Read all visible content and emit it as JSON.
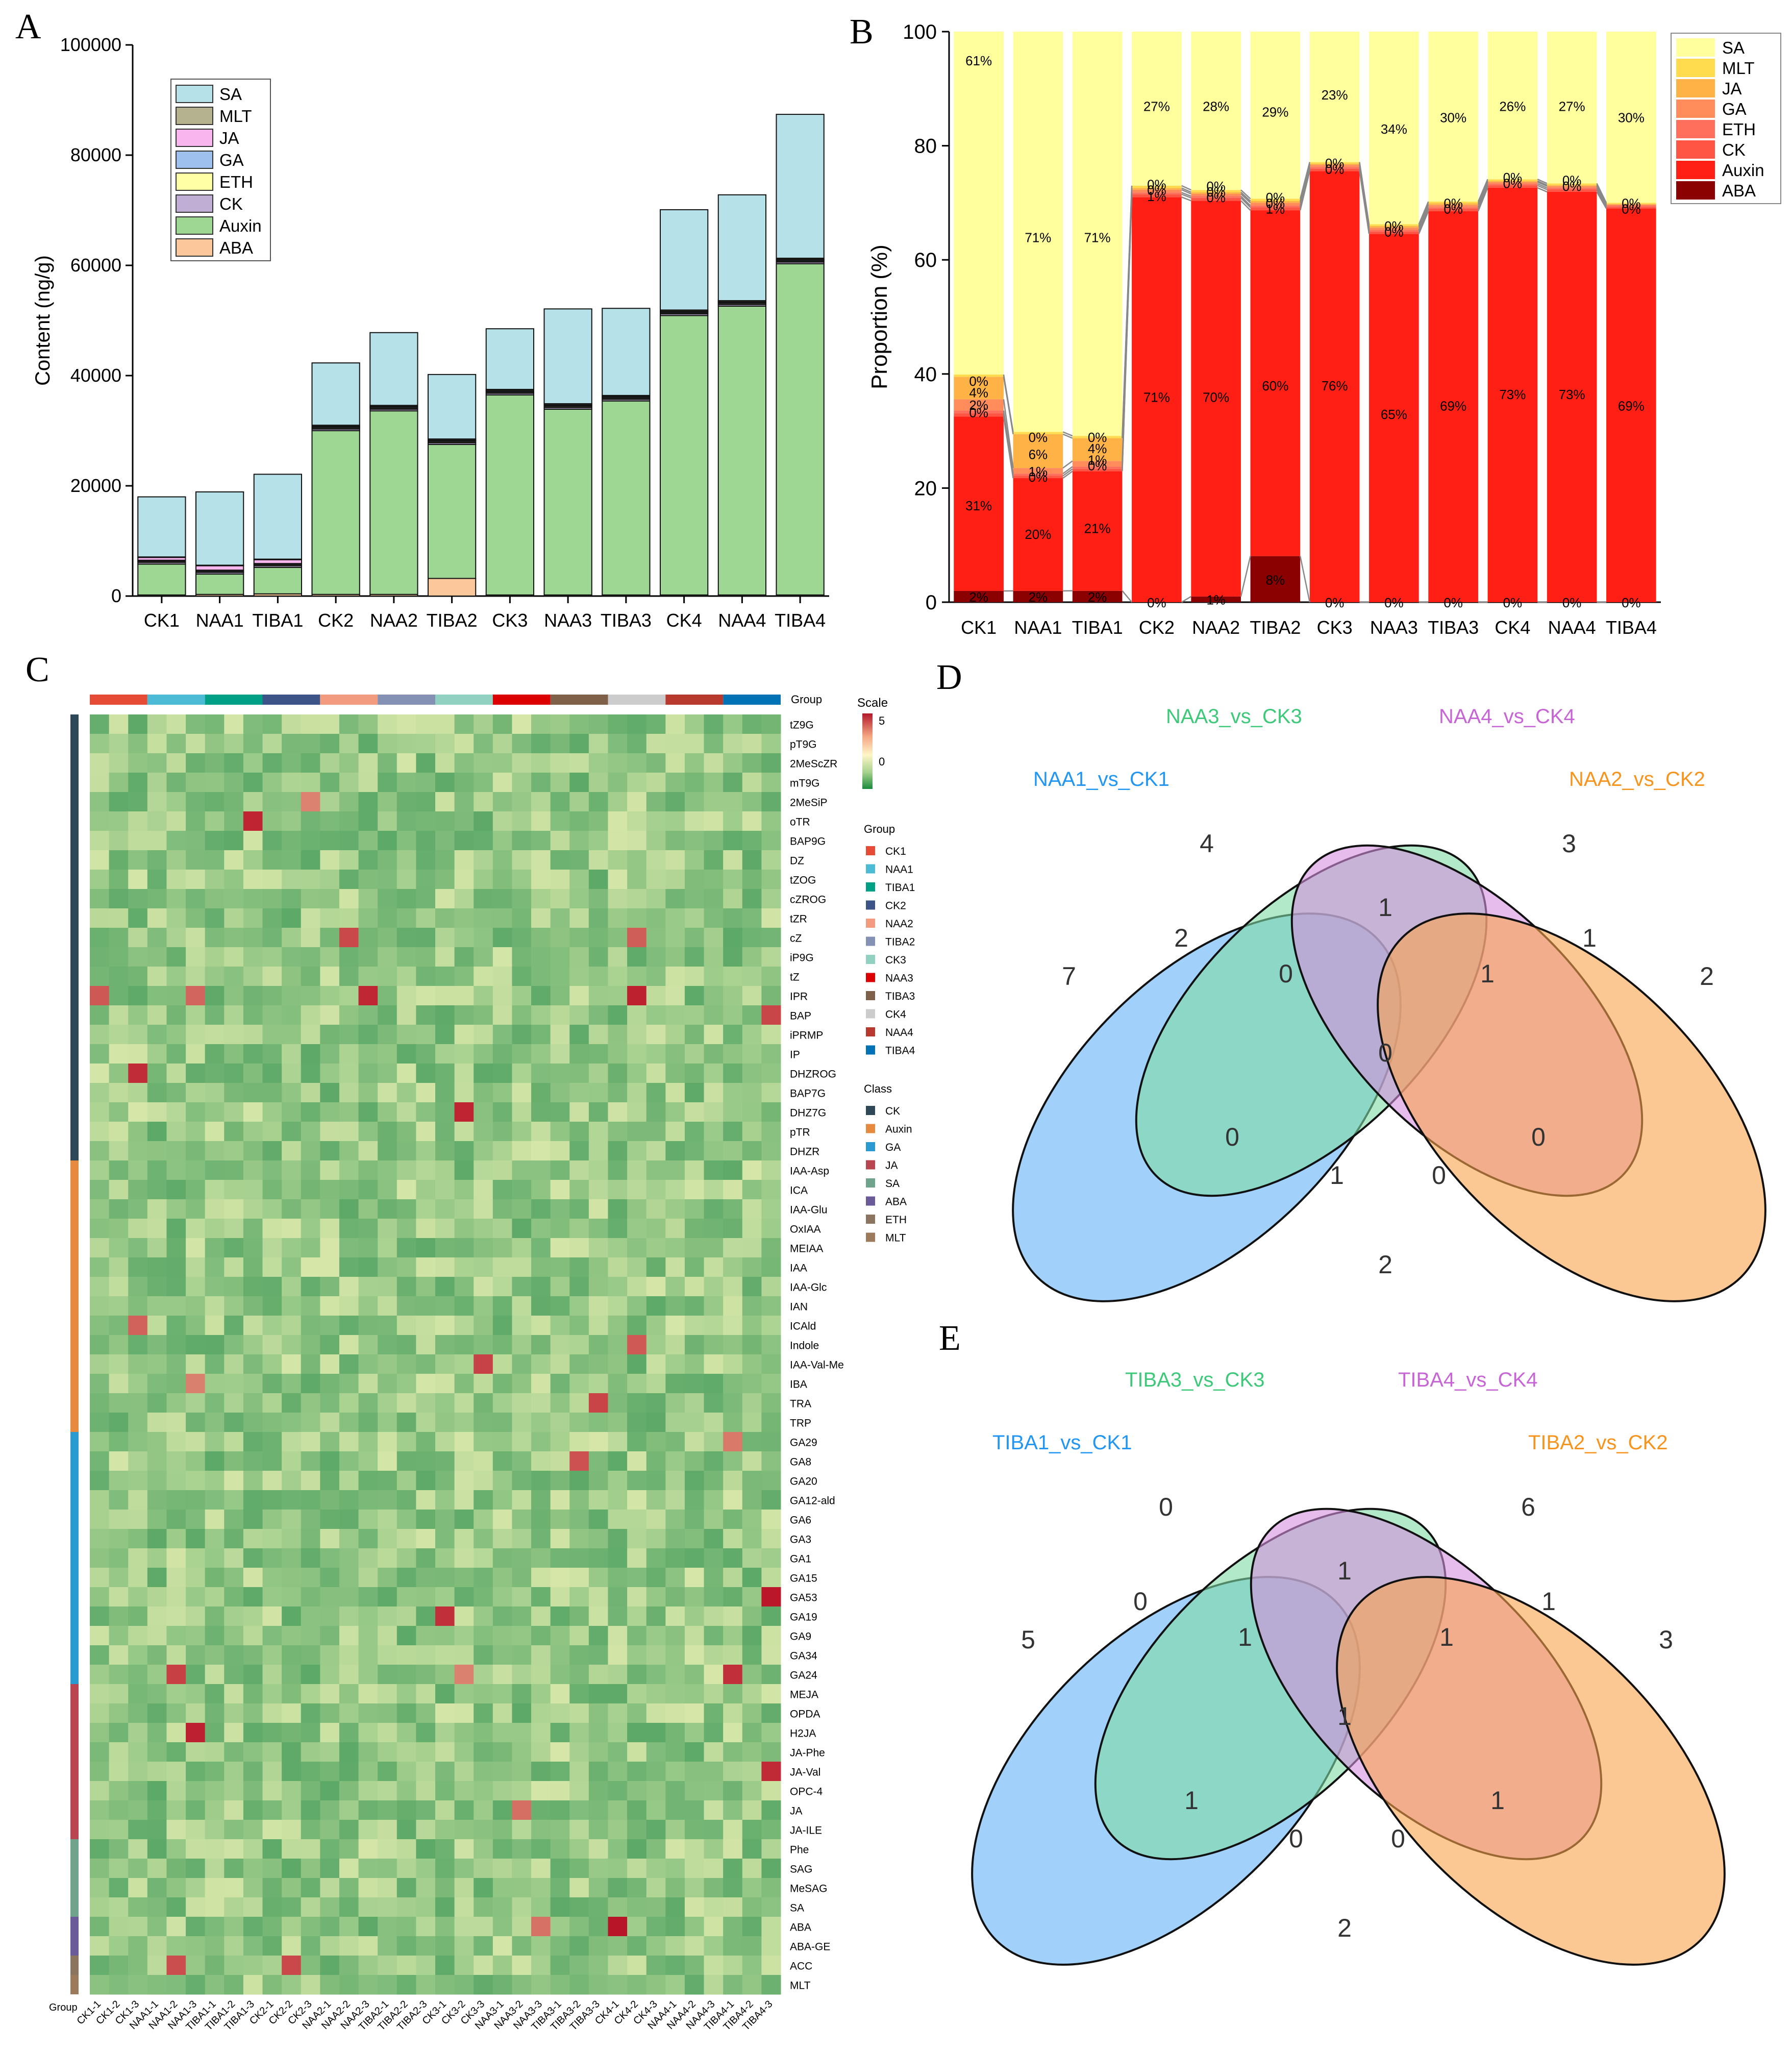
{
  "colors": {
    "SA": "#b6e1e8",
    "MLT": "#b5b38f",
    "JA": "#f9b6ee",
    "GA": "#9dc0ee",
    "ETH": "#ffffa6",
    "CK": "#c0aed4",
    "Auxin": "#9ed694",
    "ABA": "#fcc79a"
  },
  "colorsB": {
    "SA": "#ffff9e",
    "MLT": "#ffdb4d",
    "JA": "#ffb347",
    "GA": "#ff8c5a",
    "ETH": "#ff6f5c",
    "CK": "#ff5544",
    "Auxin": "#ff1f14",
    "ABA": "#8b0000"
  },
  "panel_labels": {
    "A": "A",
    "B": "B",
    "C": "C",
    "D": "D",
    "E": "E"
  },
  "chart_data": [
    {
      "id": "A",
      "type": "bar",
      "stacked": true,
      "ylabel": "Content (ng/g)",
      "ylim": [
        0,
        100000
      ],
      "yticks": [
        0,
        20000,
        40000,
        60000,
        80000,
        100000
      ],
      "categories": [
        "CK1",
        "NAA1",
        "TIBA1",
        "CK2",
        "NAA2",
        "TIBA2",
        "CK3",
        "NAA3",
        "TIBA3",
        "CK4",
        "NAA4",
        "TIBA4"
      ],
      "legend": [
        "SA",
        "MLT",
        "JA",
        "GA",
        "ETH",
        "CK",
        "Auxin",
        "ABA"
      ],
      "series": [
        {
          "name": "ABA",
          "values": [
            200,
            300,
            400,
            300,
            300,
            3200,
            200,
            200,
            200,
            200,
            200,
            200
          ]
        },
        {
          "name": "Auxin",
          "values": [
            5600,
            3700,
            4800,
            29700,
            33300,
            24300,
            36300,
            33700,
            35200,
            50700,
            52400,
            60100
          ]
        },
        {
          "name": "CK",
          "values": [
            300,
            300,
            300,
            300,
            300,
            300,
            300,
            300,
            300,
            300,
            300,
            300
          ]
        },
        {
          "name": "ETH",
          "values": [
            200,
            200,
            200,
            200,
            200,
            200,
            200,
            200,
            200,
            200,
            200,
            200
          ]
        },
        {
          "name": "GA",
          "values": [
            200,
            200,
            200,
            200,
            200,
            200,
            200,
            200,
            200,
            200,
            200,
            200
          ]
        },
        {
          "name": "JA",
          "values": [
            500,
            800,
            700,
            100,
            100,
            100,
            100,
            100,
            100,
            100,
            100,
            100
          ]
        },
        {
          "name": "MLT",
          "values": [
            100,
            100,
            100,
            200,
            200,
            200,
            200,
            200,
            200,
            200,
            200,
            200
          ]
        },
        {
          "name": "SA",
          "values": [
            10900,
            13300,
            15400,
            11300,
            13200,
            11700,
            11000,
            17200,
            15800,
            18200,
            19200,
            26100
          ]
        }
      ]
    },
    {
      "id": "B",
      "type": "bar",
      "stacked": true,
      "percent": true,
      "ylabel": "Proportion (%)",
      "ylim": [
        0,
        100
      ],
      "yticks": [
        0,
        20,
        40,
        60,
        80,
        100
      ],
      "categories": [
        "CK1",
        "NAA1",
        "TIBA1",
        "CK2",
        "NAA2",
        "TIBA2",
        "CK3",
        "NAA3",
        "TIBA3",
        "CK4",
        "NAA4",
        "TIBA4"
      ],
      "legend": [
        "SA",
        "MLT",
        "JA",
        "GA",
        "ETH",
        "CK",
        "Auxin",
        "ABA"
      ],
      "series": [
        {
          "name": "ABA",
          "values": [
            2,
            2,
            2,
            0,
            1,
            8,
            0,
            0,
            0,
            0,
            0,
            0
          ]
        },
        {
          "name": "Auxin",
          "values": [
            31,
            20,
            21,
            71,
            70,
            60,
            76,
            65,
            69,
            73,
            73,
            69
          ]
        },
        {
          "name": "CK",
          "values": [
            0.6,
            0.4,
            0.4,
            0.5,
            0.5,
            0.5,
            0.4,
            0.4,
            0.4,
            0.4,
            0.4,
            0.3
          ]
        },
        {
          "name": "ETH",
          "values": [
            0.5,
            0.4,
            0.4,
            0.3,
            0.3,
            0.3,
            0.3,
            0.3,
            0.3,
            0.3,
            0.3,
            0.2
          ]
        },
        {
          "name": "GA",
          "values": [
            2,
            1,
            1,
            0.5,
            0.4,
            0.5,
            0.4,
            0.4,
            0.4,
            0.3,
            0.3,
            0.2
          ]
        },
        {
          "name": "JA",
          "values": [
            4,
            6,
            4,
            0.3,
            0.3,
            0.3,
            0.2,
            0.3,
            0.3,
            0.2,
            0.2,
            0.1
          ]
        },
        {
          "name": "MLT",
          "values": [
            0.4,
            0.4,
            0.4,
            0.4,
            0.4,
            0.4,
            0.3,
            0.3,
            0.3,
            0.3,
            0.3,
            0.2
          ]
        },
        {
          "name": "SA",
          "values": [
            61,
            71,
            71,
            27,
            28,
            29,
            23,
            34,
            30,
            26,
            27,
            30
          ]
        }
      ],
      "labels": [
        {
          "cat": 0,
          "pos": 95,
          "text": "61%"
        },
        {
          "cat": 0,
          "pos": 38.8,
          "text": "0%"
        },
        {
          "cat": 0,
          "pos": 36.8,
          "text": "4%"
        },
        {
          "cat": 0,
          "pos": 34.6,
          "text": "2%"
        },
        {
          "cat": 0,
          "pos": 33.3,
          "text": "0%"
        },
        {
          "cat": 0,
          "pos": 17,
          "text": "31%"
        },
        {
          "cat": 0,
          "pos": 1,
          "text": "2%"
        },
        {
          "cat": 1,
          "pos": 64,
          "text": "71%"
        },
        {
          "cat": 1,
          "pos": 29,
          "text": "0%"
        },
        {
          "cat": 1,
          "pos": 26,
          "text": "6%"
        },
        {
          "cat": 1,
          "pos": 23,
          "text": "1%"
        },
        {
          "cat": 1,
          "pos": 22,
          "text": "0%"
        },
        {
          "cat": 1,
          "pos": 12,
          "text": "20%"
        },
        {
          "cat": 1,
          "pos": 1,
          "text": "2%"
        },
        {
          "cat": 2,
          "pos": 64,
          "text": "71%"
        },
        {
          "cat": 2,
          "pos": 29,
          "text": "0%"
        },
        {
          "cat": 2,
          "pos": 27,
          "text": "4%"
        },
        {
          "cat": 2,
          "pos": 25,
          "text": "1%"
        },
        {
          "cat": 2,
          "pos": 24,
          "text": "0%"
        },
        {
          "cat": 2,
          "pos": 13,
          "text": "21%"
        },
        {
          "cat": 2,
          "pos": 1,
          "text": "2%"
        },
        {
          "cat": 3,
          "pos": 87,
          "text": "27%"
        },
        {
          "cat": 3,
          "pos": 73.3,
          "text": "0%"
        },
        {
          "cat": 3,
          "pos": 72.3,
          "text": "0%"
        },
        {
          "cat": 3,
          "pos": 71.2,
          "text": "1%"
        },
        {
          "cat": 3,
          "pos": 36,
          "text": "71%"
        },
        {
          "cat": 3,
          "pos": 0,
          "text": "0%"
        },
        {
          "cat": 4,
          "pos": 87,
          "text": "28%"
        },
        {
          "cat": 4,
          "pos": 73,
          "text": "0%"
        },
        {
          "cat": 4,
          "pos": 72,
          "text": "0%"
        },
        {
          "cat": 4,
          "pos": 71,
          "text": "0%"
        },
        {
          "cat": 4,
          "pos": 36,
          "text": "70%"
        },
        {
          "cat": 4,
          "pos": 0.5,
          "text": "1%"
        },
        {
          "cat": 5,
          "pos": 86,
          "text": "29%"
        },
        {
          "cat": 5,
          "pos": 71,
          "text": "0%"
        },
        {
          "cat": 5,
          "pos": 70,
          "text": "0%"
        },
        {
          "cat": 5,
          "pos": 69,
          "text": "1%"
        },
        {
          "cat": 5,
          "pos": 38,
          "text": "60%"
        },
        {
          "cat": 5,
          "pos": 4,
          "text": "8%"
        },
        {
          "cat": 6,
          "pos": 89,
          "text": "23%"
        },
        {
          "cat": 6,
          "pos": 77,
          "text": "0%"
        },
        {
          "cat": 6,
          "pos": 76,
          "text": "0%"
        },
        {
          "cat": 6,
          "pos": 38,
          "text": "76%"
        },
        {
          "cat": 6,
          "pos": 0,
          "text": "0%"
        },
        {
          "cat": 7,
          "pos": 83,
          "text": "34%"
        },
        {
          "cat": 7,
          "pos": 66,
          "text": "0%"
        },
        {
          "cat": 7,
          "pos": 65,
          "text": "0%"
        },
        {
          "cat": 7,
          "pos": 33,
          "text": "65%"
        },
        {
          "cat": 7,
          "pos": 0,
          "text": "0%"
        },
        {
          "cat": 8,
          "pos": 85,
          "text": "30%"
        },
        {
          "cat": 8,
          "pos": 70,
          "text": "0%"
        },
        {
          "cat": 8,
          "pos": 69,
          "text": "0%"
        },
        {
          "cat": 8,
          "pos": 34.5,
          "text": "69%"
        },
        {
          "cat": 8,
          "pos": 0,
          "text": "0%"
        },
        {
          "cat": 9,
          "pos": 87,
          "text": "26%"
        },
        {
          "cat": 9,
          "pos": 74.5,
          "text": "0%"
        },
        {
          "cat": 9,
          "pos": 73.5,
          "text": "0%"
        },
        {
          "cat": 9,
          "pos": 36.5,
          "text": "73%"
        },
        {
          "cat": 9,
          "pos": 0,
          "text": "0%"
        },
        {
          "cat": 10,
          "pos": 87,
          "text": "27%"
        },
        {
          "cat": 10,
          "pos": 74,
          "text": "0%"
        },
        {
          "cat": 10,
          "pos": 73,
          "text": "0%"
        },
        {
          "cat": 10,
          "pos": 36.5,
          "text": "73%"
        },
        {
          "cat": 10,
          "pos": 0,
          "text": "0%"
        },
        {
          "cat": 11,
          "pos": 85,
          "text": "30%"
        },
        {
          "cat": 11,
          "pos": 70,
          "text": "0%"
        },
        {
          "cat": 11,
          "pos": 69,
          "text": "0%"
        },
        {
          "cat": 11,
          "pos": 34.5,
          "text": "69%"
        },
        {
          "cat": 11,
          "pos": 0,
          "text": "0%"
        }
      ]
    },
    {
      "id": "C",
      "type": "heatmap",
      "samples": [
        "CK1-1",
        "CK1-2",
        "CK1-3",
        "NAA1-1",
        "NAA1-2",
        "NAA1-3",
        "TIBA1-1",
        "TIBA1-2",
        "TIBA1-3",
        "CK2-1",
        "CK2-2",
        "CK2-3",
        "NAA2-1",
        "NAA2-2",
        "NAA2-3",
        "TIBA2-1",
        "TIBA2-2",
        "TIBA2-3",
        "CK3-1",
        "CK3-2",
        "CK3-3",
        "NAA3-1",
        "NAA3-2",
        "NAA3-3",
        "TIBA3-1",
        "TIBA3-2",
        "TIBA3-3",
        "CK4-1",
        "CK4-2",
        "CK4-3",
        "NAA4-1",
        "NAA4-2",
        "NAA4-3",
        "TIBA4-1",
        "TIBA4-2",
        "TIBA4-3"
      ],
      "rows": [
        "tZ9G",
        "pT9G",
        "2MeScZR",
        "mT9G",
        "2MeSiP",
        "oTR",
        "BAP9G",
        "DZ",
        "tZOG",
        "cZROG",
        "tZR",
        "cZ",
        "iP9G",
        "tZ",
        "IPR",
        "BAP",
        "iPRMP",
        "IP",
        "DHZROG",
        "BAP7G",
        "DHZ7G",
        "pTR",
        "DHZR",
        "IAA-Asp",
        "ICA",
        "IAA-Glu",
        "OxIAA",
        "MEIAA",
        "IAA",
        "IAA-Glc",
        "IAN",
        "ICAld",
        "Indole",
        "IAA-Val-Me",
        "IBA",
        "TRA",
        "TRP",
        "GA29",
        "GA8",
        "GA20",
        "GA12-ald",
        "GA6",
        "GA3",
        "GA1",
        "GA15",
        "GA53",
        "GA19",
        "GA9",
        "GA34",
        "GA24",
        "MEJA",
        "OPDA",
        "H2JA",
        "JA-Phe",
        "JA-Val",
        "OPC-4",
        "JA",
        "JA-ILE",
        "Phe",
        "SAG",
        "MeSAG",
        "SA",
        "ABA",
        "ABA-GE",
        "ACC",
        "MLT"
      ],
      "row_classes": [
        {
          "class": "CK",
          "count": 23
        },
        {
          "class": "Auxin",
          "count": 14
        },
        {
          "class": "GA",
          "count": 13
        },
        {
          "class": "JA",
          "count": 8
        },
        {
          "class": "SA",
          "count": 4
        },
        {
          "class": "ABA",
          "count": 2
        },
        {
          "class": "ETH",
          "count": 1
        },
        {
          "class": "MLT",
          "count": 1
        }
      ],
      "scale": {
        "title": "Scale",
        "min": -2,
        "max": 5,
        "ticks": [
          5,
          0
        ]
      },
      "group_legend_title": "Group",
      "group_axis_label": "Group",
      "groups": [
        {
          "name": "CK1",
          "color": "#e64b35"
        },
        {
          "name": "NAA1",
          "color": "#4dbbd5"
        },
        {
          "name": "TIBA1",
          "color": "#00a087"
        },
        {
          "name": "CK2",
          "color": "#3c5488"
        },
        {
          "name": "NAA2",
          "color": "#f39b7f"
        },
        {
          "name": "TIBA2",
          "color": "#8491b4"
        },
        {
          "name": "CK3",
          "color": "#91d1c2"
        },
        {
          "name": "NAA3",
          "color": "#dc0000"
        },
        {
          "name": "TIBA3",
          "color": "#7e6148"
        },
        {
          "name": "CK4",
          "color": "#cccccc"
        },
        {
          "name": "NAA4",
          "color": "#b83a2f"
        },
        {
          "name": "TIBA4",
          "color": "#0072b5"
        }
      ],
      "class_legend_title": "Class",
      "classes": [
        {
          "name": "CK",
          "color": "#2f4858"
        },
        {
          "name": "Auxin",
          "color": "#e68a3f"
        },
        {
          "name": "GA",
          "color": "#2a9bd0"
        },
        {
          "name": "JA",
          "color": "#b8454f"
        },
        {
          "name": "SA",
          "color": "#6fa38c"
        },
        {
          "name": "ABA",
          "color": "#6a5a9a"
        },
        {
          "name": "ETH",
          "color": "#8c7560"
        },
        {
          "name": "MLT",
          "color": "#9c7a5c"
        }
      ]
    },
    {
      "id": "D",
      "type": "venn",
      "sets": [
        {
          "name": "NAA1_vs_CK1",
          "color": "#2196f3",
          "fill": "#63b2f8"
        },
        {
          "name": "NAA3_vs_CK3",
          "color": "#3ec97a",
          "fill": "#7fdba3"
        },
        {
          "name": "NAA4_vs_CK4",
          "color": "#c865d6",
          "fill": "#d68fe0"
        },
        {
          "name": "NAA2_vs_CK2",
          "color": "#f7941d",
          "fill": "#f8a44c"
        }
      ],
      "counts": {
        "A": 7,
        "B": 4,
        "C": 3,
        "D": 2,
        "AB": 2,
        "BC": 1,
        "CD": 1,
        "ABC": 0,
        "BCD": 1,
        "ABCD": 0,
        "AC": 0,
        "BD": 0,
        "ACD": 1,
        "ABD": 0,
        "AD": 2
      }
    },
    {
      "id": "E",
      "type": "venn",
      "sets": [
        {
          "name": "TIBA1_vs_CK1",
          "color": "#2196f3",
          "fill": "#63b2f8"
        },
        {
          "name": "TIBA3_vs_CK3",
          "color": "#3ec97a",
          "fill": "#7fdba3"
        },
        {
          "name": "TIBA4_vs_CK4",
          "color": "#c865d6",
          "fill": "#d68fe0"
        },
        {
          "name": "TIBA2_vs_CK2",
          "color": "#f7941d",
          "fill": "#f8a44c"
        }
      ],
      "counts": {
        "A": 5,
        "B": 0,
        "C": 6,
        "D": 3,
        "AB": 0,
        "BC": 1,
        "CD": 1,
        "ABC": 1,
        "BCD": 1,
        "ABCD": 1,
        "AC": 1,
        "BD": 1,
        "ACD": 0,
        "ABD": 0,
        "AD": 2
      }
    }
  ]
}
